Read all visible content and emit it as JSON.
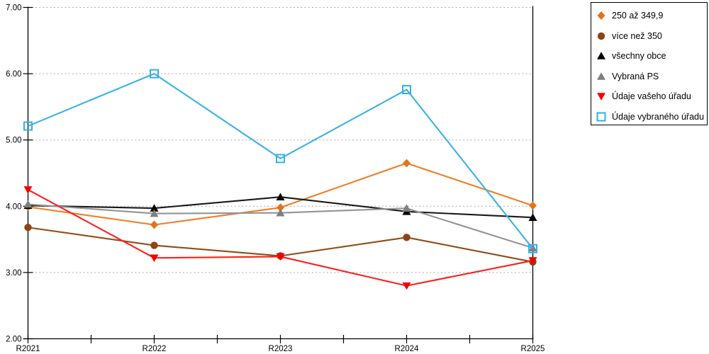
{
  "chart_data": {
    "type": "line",
    "title": "",
    "categories": [
      "R2021",
      "R2022",
      "R2023",
      "R2024",
      "R2025"
    ],
    "ylim": [
      2,
      7
    ],
    "y_tick_labels": [
      "2.00",
      "3.00",
      "4.00",
      "5.00",
      "6.00",
      "7.00"
    ],
    "grid": "horizontal-dotted",
    "legend_position": "top-right",
    "series": [
      {
        "name": "250 až 349,9",
        "marker": "diamond",
        "color": "#E4731A",
        "line_color": "#F07E26",
        "values": [
          3.99,
          3.72,
          3.98,
          4.65,
          4.01
        ]
      },
      {
        "name": "více než 350",
        "marker": "circle",
        "color": "#8B4513",
        "line_color": "#8F4D18",
        "values": [
          3.68,
          3.41,
          3.25,
          3.53,
          3.16
        ]
      },
      {
        "name": "všechny obce",
        "marker": "triangle-up",
        "color": "#000000",
        "line_color": "#1A1A1A",
        "values": [
          4.01,
          3.97,
          4.14,
          3.92,
          3.83
        ]
      },
      {
        "name": "Vybraná PS",
        "marker": "triangle-up",
        "color": "#7F7F7F",
        "line_color": "#949494",
        "values": [
          4.03,
          3.89,
          3.9,
          3.97,
          3.37
        ]
      },
      {
        "name": "Údaje vašeho úřadu",
        "marker": "triangle-down",
        "color": "#F30000",
        "line_color": "#FB2020",
        "values": [
          4.25,
          3.22,
          3.24,
          2.8,
          3.18
        ]
      },
      {
        "name": "Údaje vybraného úřadu",
        "marker": "square-open",
        "color": "#35AFE3",
        "line_color": "#3BB2E5",
        "values": [
          5.21,
          6.0,
          4.72,
          5.76,
          3.36
        ]
      }
    ]
  },
  "colors": {
    "background": "#FFFFFF",
    "axis": "#000000",
    "gridline": "#ABABAB",
    "tick_label": "#000000",
    "legend_border": "#000000"
  }
}
